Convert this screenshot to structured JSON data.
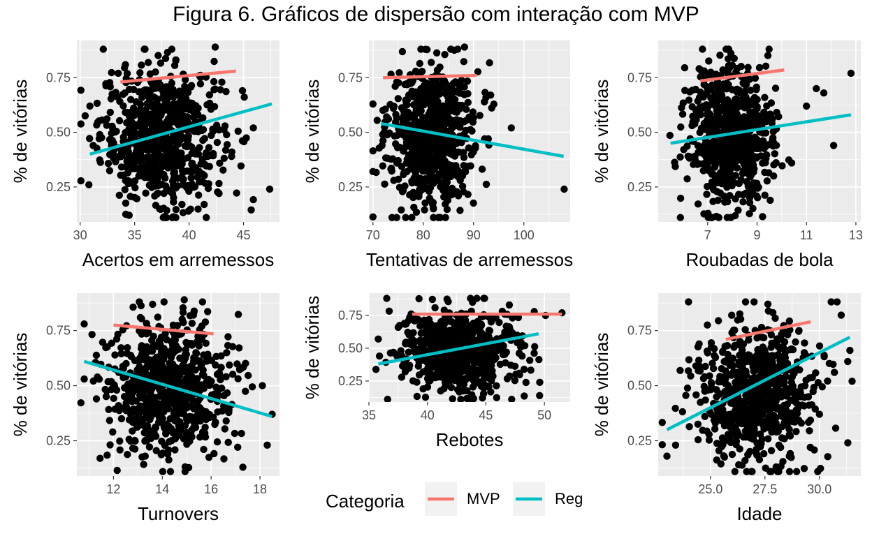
{
  "title": "Figura 6. Gráficos de dispersão com interação com MVP",
  "legend": {
    "title": "Categoria",
    "entries": [
      {
        "label": "MVP",
        "color": "#F8766D"
      },
      {
        "label": "Regular",
        "color": "#00BFC4"
      }
    ]
  },
  "colors": {
    "panel_bg": "#EBEBEB",
    "grid": "#FFFFFF",
    "points": "#000000",
    "mvp": "#F8766D",
    "regular": "#00BFC4"
  },
  "chart_data": [
    {
      "type": "scatter",
      "xlabel": "Acertos em arremessos",
      "ylabel": "% de vitórias",
      "xlim": [
        29.7,
        48.3
      ],
      "ylim": [
        0.09,
        0.92
      ],
      "xticks": [
        30,
        35,
        40,
        45
      ],
      "yticks": [
        0.25,
        0.5,
        0.75
      ],
      "ytick_labels": [
        "0.25",
        "0.50",
        "0.75"
      ],
      "x_center": [
        37.5,
        2.8
      ],
      "y_center": [
        0.48,
        0.16
      ],
      "n_points": 700,
      "extra_points": [
        [
          30.9,
          0.62
        ],
        [
          31.2,
          0.44
        ],
        [
          33.5,
          0.77
        ],
        [
          45.9,
          0.52
        ],
        [
          47.4,
          0.24
        ],
        [
          42.4,
          0.89
        ],
        [
          44.9,
          0.69
        ],
        [
          30.8,
          0.26
        ]
      ],
      "series": [
        {
          "name": "MVP",
          "fit": [
            [
              33.7,
              0.73
            ],
            [
              44.3,
              0.78
            ]
          ]
        },
        {
          "name": "Regular",
          "fit": [
            [
              30.9,
              0.4
            ],
            [
              47.6,
              0.63
            ]
          ]
        }
      ]
    },
    {
      "type": "scatter",
      "xlabel": "Tentativas de arremessos",
      "ylabel": "% de vitórias",
      "xlim": [
        69.2,
        109.2
      ],
      "ylim": [
        0.09,
        0.92
      ],
      "xticks": [
        70,
        80,
        90,
        100
      ],
      "yticks": [
        0.25,
        0.5,
        0.75
      ],
      "ytick_labels": [
        "0.25",
        "0.50",
        "0.75"
      ],
      "x_center": [
        81.5,
        4.3
      ],
      "y_center": [
        0.48,
        0.16
      ],
      "n_points": 700,
      "extra_points": [
        [
          97.5,
          0.52
        ],
        [
          93.4,
          0.67
        ],
        [
          108.0,
          0.24
        ],
        [
          71.8,
          0.44
        ],
        [
          88.2,
          0.89
        ],
        [
          92.2,
          0.47
        ]
      ],
      "series": [
        {
          "name": "MVP",
          "fit": [
            [
              72.0,
              0.75
            ],
            [
              90.6,
              0.76
            ]
          ]
        },
        {
          "name": "Regular",
          "fit": [
            [
              71.6,
              0.54
            ],
            [
              107.9,
              0.39
            ]
          ]
        }
      ]
    },
    {
      "type": "scatter",
      "xlabel": "Roubadas de bola",
      "ylabel": "% de vitórias",
      "xlim": [
        5.0,
        13.2
      ],
      "ylim": [
        0.09,
        0.92
      ],
      "xticks": [
        7,
        9,
        11,
        13
      ],
      "yticks": [
        0.25,
        0.5,
        0.75
      ],
      "ytick_labels": [
        "0.25",
        "0.50",
        "0.75"
      ],
      "x_center": [
        7.9,
        0.85
      ],
      "y_center": [
        0.48,
        0.16
      ],
      "n_points": 700,
      "extra_points": [
        [
          12.8,
          0.77
        ],
        [
          12.1,
          0.44
        ],
        [
          11.4,
          0.7
        ],
        [
          11.0,
          0.62
        ],
        [
          10.4,
          0.36
        ],
        [
          11.7,
          0.68
        ],
        [
          5.9,
          0.11
        ]
      ],
      "series": [
        {
          "name": "MVP",
          "fit": [
            [
              6.7,
              0.735
            ],
            [
              10.1,
              0.785
            ]
          ]
        },
        {
          "name": "Regular",
          "fit": [
            [
              5.5,
              0.45
            ],
            [
              12.8,
              0.58
            ]
          ]
        }
      ]
    },
    {
      "type": "scatter",
      "xlabel": "Turnovers",
      "ylabel": "% de vitórias",
      "xlim": [
        10.5,
        18.8
      ],
      "ylim": [
        0.09,
        0.92
      ],
      "xticks": [
        12,
        14,
        16,
        18
      ],
      "yticks": [
        0.25,
        0.5,
        0.75
      ],
      "ytick_labels": [
        "0.25",
        "0.50",
        "0.75"
      ],
      "x_center": [
        14.2,
        1.25
      ],
      "y_center": [
        0.48,
        0.16
      ],
      "n_points": 700,
      "extra_points": [
        [
          10.8,
          0.78
        ],
        [
          10.8,
          0.53
        ],
        [
          18.5,
          0.37
        ],
        [
          18.1,
          0.5
        ],
        [
          18.3,
          0.23
        ],
        [
          17.3,
          0.13
        ],
        [
          14.9,
          0.89
        ],
        [
          11.3,
          0.44
        ]
      ],
      "series": [
        {
          "name": "MVP",
          "fit": [
            [
              12.0,
              0.775
            ],
            [
              16.1,
              0.735
            ]
          ]
        },
        {
          "name": "Regular",
          "fit": [
            [
              10.8,
              0.61
            ],
            [
              18.5,
              0.36
            ]
          ]
        }
      ]
    },
    {
      "type": "scatter",
      "xlabel": "Rebotes",
      "ylabel": "% de vitórias",
      "xlim": [
        35.0,
        52.2
      ],
      "ylim": [
        0.09,
        0.92
      ],
      "xticks": [
        35,
        40,
        45,
        50
      ],
      "yticks": [
        0.25,
        0.5,
        0.75
      ],
      "ytick_labels": [
        "0.25",
        "0.50",
        "0.75"
      ],
      "x_center": [
        42.5,
        2.4
      ],
      "y_center": [
        0.48,
        0.16
      ],
      "n_points": 700,
      "extra_points": [
        [
          51.5,
          0.77
        ],
        [
          49.6,
          0.24
        ],
        [
          35.8,
          0.57
        ],
        [
          35.9,
          0.44
        ],
        [
          37.5,
          0.66
        ],
        [
          50.1,
          0.75
        ]
      ],
      "series": [
        {
          "name": "MVP",
          "fit": [
            [
              38.7,
              0.76
            ],
            [
              51.5,
              0.76
            ]
          ]
        },
        {
          "name": "Regular",
          "fit": [
            [
              35.8,
              0.38
            ],
            [
              49.5,
              0.61
            ]
          ]
        }
      ]
    },
    {
      "type": "scatter",
      "xlabel": "Idade",
      "ylabel": "% de vitórias",
      "xlim": [
        22.6,
        31.9
      ],
      "ylim": [
        0.09,
        0.92
      ],
      "xticks": [
        25.0,
        27.5,
        30.0
      ],
      "xtick_labels": [
        "25.0",
        "27.5",
        "30.0"
      ],
      "yticks": [
        0.25,
        0.5,
        0.75
      ],
      "ytick_labels": [
        "0.25",
        "0.50",
        "0.75"
      ],
      "x_center": [
        27.0,
        1.35
      ],
      "y_center": [
        0.48,
        0.16
      ],
      "n_points": 700,
      "extra_points": [
        [
          31.5,
          0.52
        ],
        [
          31.3,
          0.61
        ],
        [
          31.0,
          0.82
        ],
        [
          23.0,
          0.18
        ],
        [
          23.4,
          0.23
        ],
        [
          31.4,
          0.66
        ],
        [
          30.0,
          0.37
        ]
      ],
      "series": [
        {
          "name": "MVP",
          "fit": [
            [
              25.7,
              0.71
            ],
            [
              29.6,
              0.79
            ]
          ]
        },
        {
          "name": "Regular",
          "fit": [
            [
              23.0,
              0.3
            ],
            [
              31.4,
              0.72
            ]
          ]
        }
      ]
    }
  ]
}
